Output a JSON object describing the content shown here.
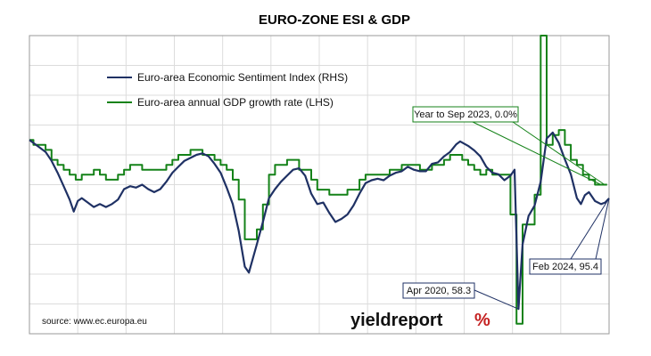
{
  "chart_data": {
    "type": "line",
    "title": "EURO-ZONE ESI & GDP",
    "left_axis": {
      "unit_label": "%",
      "ylim": [
        -15,
        15
      ],
      "ticks": [
        15,
        12,
        9,
        6,
        3,
        0,
        -3,
        -6,
        -9,
        -12,
        -15
      ]
    },
    "right_axis": {
      "ylim": [
        50,
        150
      ],
      "ticks": [
        150,
        140,
        130,
        120,
        110,
        100,
        90,
        80,
        70,
        60,
        50
      ]
    },
    "x_ticks": [
      "Feb-00",
      "Feb-02",
      "Feb-04",
      "Feb-06",
      "Feb-08",
      "Feb-10",
      "Feb-12",
      "Feb-14",
      "Feb-16",
      "Feb-18",
      "Feb-20",
      "Feb-22",
      "Feb-24"
    ],
    "x_range": [
      2000.083,
      2024.083
    ],
    "grid": true,
    "legend_position": "top-left",
    "series": [
      {
        "name": "Euro-area Economic Sentiment Index (RHS)",
        "axis": "right",
        "color": "#1f3164",
        "x": [
          2000.083,
          2000.25,
          2000.5,
          2000.75,
          2001.0,
          2001.25,
          2001.5,
          2001.75,
          2001.917,
          2002.083,
          2002.25,
          2002.5,
          2002.75,
          2003.0,
          2003.25,
          2003.5,
          2003.75,
          2004.0,
          2004.25,
          2004.5,
          2004.75,
          2005.0,
          2005.25,
          2005.5,
          2005.75,
          2006.0,
          2006.25,
          2006.5,
          2006.75,
          2007.0,
          2007.25,
          2007.5,
          2007.75,
          2008.0,
          2008.25,
          2008.5,
          2008.75,
          2009.0,
          2009.17,
          2009.5,
          2009.75,
          2010.0,
          2010.25,
          2010.5,
          2010.75,
          2011.0,
          2011.25,
          2011.5,
          2011.75,
          2012.0,
          2012.25,
          2012.5,
          2012.75,
          2013.0,
          2013.25,
          2013.5,
          2013.75,
          2014.0,
          2014.25,
          2014.5,
          2014.75,
          2015.0,
          2015.25,
          2015.5,
          2015.75,
          2016.0,
          2016.25,
          2016.5,
          2016.75,
          2017.0,
          2017.25,
          2017.5,
          2017.75,
          2017.917,
          2018.25,
          2018.5,
          2018.75,
          2019.0,
          2019.25,
          2019.5,
          2019.75,
          2020.0,
          2020.17,
          2020.333,
          2020.5,
          2020.75,
          2021.0,
          2021.25,
          2021.5,
          2021.75,
          2022.0,
          2022.25,
          2022.5,
          2022.75,
          2022.917,
          2023.083,
          2023.25,
          2023.5,
          2023.75,
          2023.917,
          2024.083
        ],
        "y": [
          115,
          114,
          112.5,
          111,
          108,
          104,
          99.5,
          95,
          91,
          94.5,
          95.5,
          94,
          92.5,
          93.5,
          92.5,
          93.5,
          95,
          98.5,
          99.5,
          99,
          100,
          98.5,
          97.5,
          98.5,
          101,
          104,
          106,
          108,
          109,
          110,
          110.5,
          109.5,
          107,
          104,
          99,
          93.5,
          84.5,
          72.5,
          70.5,
          80,
          87.5,
          95.5,
          98.5,
          101,
          103,
          105,
          105.5,
          103,
          97,
          93.5,
          94,
          90.5,
          87.5,
          88.5,
          90,
          93,
          97,
          100.5,
          101.5,
          102,
          101.5,
          103,
          104,
          104.5,
          106,
          105,
          104.5,
          104.5,
          107,
          107.5,
          109.5,
          111,
          113.5,
          114.5,
          113,
          111.5,
          109.5,
          106,
          104,
          103.5,
          101.5,
          103,
          105,
          58.3,
          80,
          89.5,
          93,
          101,
          115.5,
          117.5,
          114,
          108.5,
          103.5,
          95.5,
          93.5,
          96.5,
          97.5,
          94.5,
          93.5,
          94,
          95.4
        ]
      },
      {
        "name": "Euro-area annual GDP growth rate (LHS)",
        "axis": "left",
        "color": "#148218",
        "x": [
          2000.0,
          2000.25,
          2000.5,
          2000.75,
          2001.0,
          2001.25,
          2001.5,
          2001.75,
          2002.0,
          2002.25,
          2002.5,
          2002.75,
          2003.0,
          2003.25,
          2003.5,
          2003.75,
          2004.0,
          2004.25,
          2004.5,
          2004.75,
          2005.0,
          2005.25,
          2005.5,
          2005.75,
          2006.0,
          2006.25,
          2006.5,
          2006.75,
          2007.0,
          2007.25,
          2007.5,
          2007.75,
          2008.0,
          2008.25,
          2008.5,
          2008.75,
          2009.0,
          2009.25,
          2009.5,
          2009.75,
          2010.0,
          2010.25,
          2010.5,
          2010.75,
          2011.0,
          2011.25,
          2011.5,
          2011.75,
          2012.0,
          2012.25,
          2012.5,
          2012.75,
          2013.0,
          2013.25,
          2013.5,
          2013.75,
          2014.0,
          2014.25,
          2014.5,
          2014.75,
          2015.0,
          2015.25,
          2015.5,
          2015.75,
          2016.0,
          2016.25,
          2016.5,
          2016.75,
          2017.0,
          2017.25,
          2017.5,
          2017.75,
          2018.0,
          2018.25,
          2018.5,
          2018.75,
          2019.0,
          2019.25,
          2019.5,
          2019.75,
          2020.0,
          2020.25,
          2020.5,
          2020.75,
          2021.0,
          2021.25,
          2021.5,
          2021.75,
          2022.0,
          2022.25,
          2022.5,
          2022.75,
          2023.0,
          2023.25,
          2023.5,
          2023.75
        ],
        "y": [
          4.5,
          4.0,
          4.0,
          3.5,
          2.5,
          2.0,
          1.5,
          1.0,
          0.5,
          1.0,
          1.0,
          1.5,
          1.0,
          0.5,
          0.5,
          1.0,
          1.5,
          2.0,
          2.0,
          1.5,
          1.5,
          1.5,
          1.5,
          2.0,
          2.5,
          3.0,
          3.0,
          3.5,
          3.5,
          3.0,
          3.0,
          2.5,
          2.0,
          1.5,
          0.5,
          -1.5,
          -5.5,
          -5.5,
          -4.5,
          -2.0,
          1.0,
          2.0,
          2.0,
          2.5,
          2.5,
          1.5,
          1.5,
          0.5,
          -0.5,
          -0.5,
          -1.0,
          -1.0,
          -1.0,
          -0.5,
          -0.5,
          0.5,
          1.0,
          1.0,
          1.0,
          1.0,
          1.5,
          1.5,
          2.0,
          2.0,
          2.0,
          1.5,
          1.5,
          2.0,
          2.0,
          2.5,
          3.0,
          3.0,
          2.5,
          2.0,
          1.5,
          1.0,
          1.5,
          1.0,
          1.0,
          1.0,
          -3.0,
          -14.0,
          -4.0,
          -4.0,
          -1.0,
          15.0,
          4.0,
          5.0,
          5.5,
          4.0,
          2.5,
          2.0,
          1.0,
          0.5,
          0.0,
          0.0
        ]
      }
    ],
    "annotations": [
      {
        "text": "Year to Sep 2023, 0.0%",
        "series": 1,
        "point_x": 2023.75,
        "point_y": 0.0,
        "box_color": "#148218"
      },
      {
        "text": "Feb 2024, 95.4",
        "series": 0,
        "point_x": 2024.083,
        "point_y": 95.4,
        "box_color": "#1f3164"
      },
      {
        "text": "Apr 2020, 58.3",
        "series": 0,
        "point_x": 2020.333,
        "point_y": 58.3,
        "box_color": "#1f3164"
      }
    ],
    "source": "source: www.ec.europa.eu",
    "brand": {
      "text": "yieldreport",
      "symbol": "%",
      "text_color": "#111111",
      "symbol_color": "#c42020"
    }
  }
}
